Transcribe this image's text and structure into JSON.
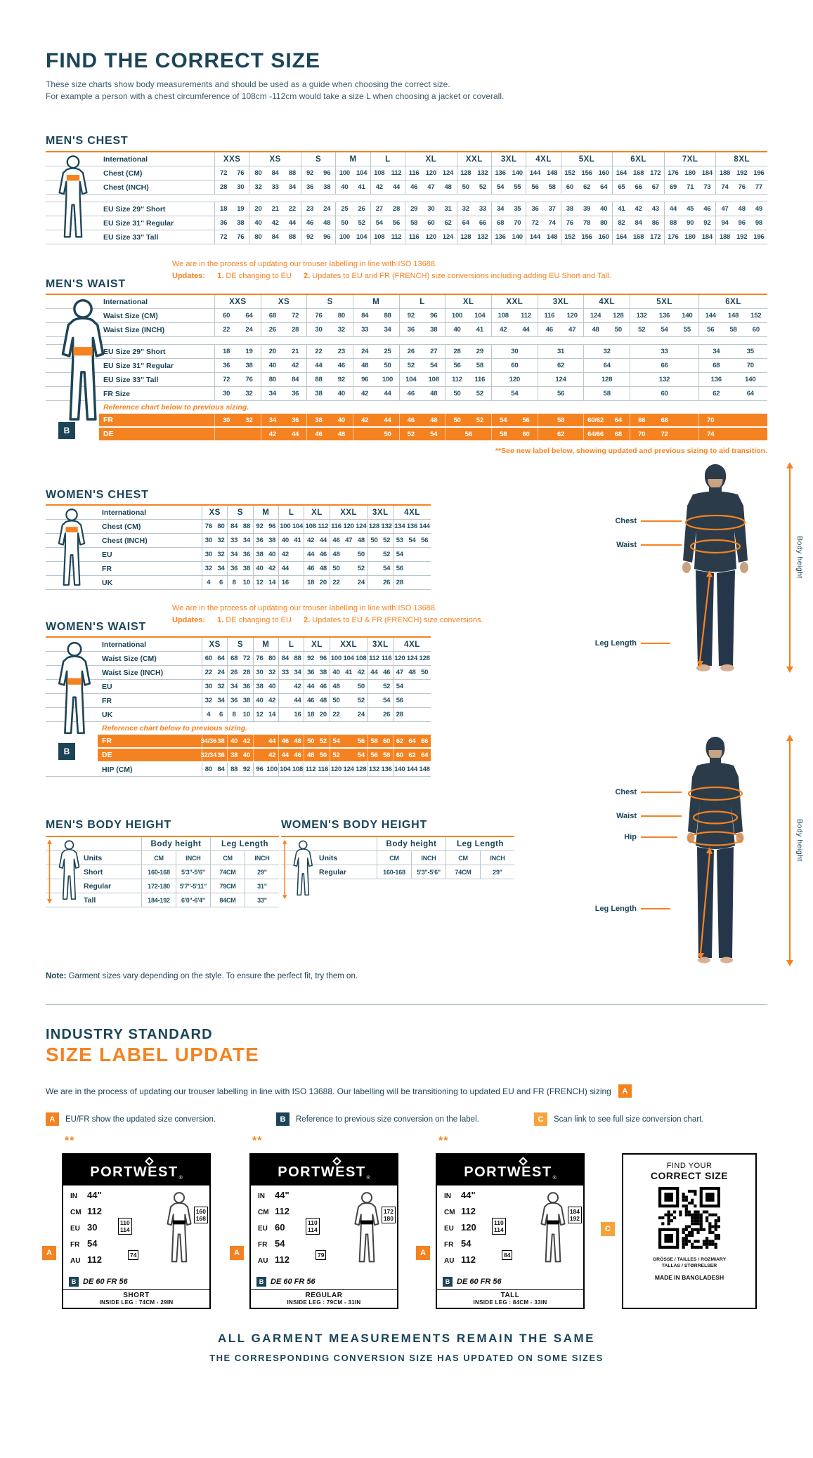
{
  "page": {
    "title": "FIND THE CORRECT SIZE",
    "subtitle1": "These size charts show body measurements and should be used as a guide when choosing the correct size.",
    "subtitle2": "For example a person with a chest circumference of 108cm -112cm would take a size L when choosing a jacket or coverall."
  },
  "colors": {
    "navy": "#1b4457",
    "orange": "#f58220",
    "amber": "#f5a43c"
  },
  "badges": {
    "a": "A",
    "b": "B",
    "c": "C"
  },
  "figure_labels": {
    "chest": "Chest",
    "waist": "Waist",
    "hip": "Hip",
    "leg": "Leg Length",
    "height": "Body height"
  },
  "tables": {
    "mens_chest": {
      "title": "MEN'S CHEST",
      "corner": "International",
      "groups": [
        {
          "label": "XXS",
          "cols": 2
        },
        {
          "label": "XS",
          "cols": 3
        },
        {
          "label": "S",
          "cols": 2
        },
        {
          "label": "M",
          "cols": 2
        },
        {
          "label": "L",
          "cols": 2
        },
        {
          "label": "XL",
          "cols": 3
        },
        {
          "label": "XXL",
          "cols": 2
        },
        {
          "label": "3XL",
          "cols": 2
        },
        {
          "label": "4XL",
          "cols": 2
        },
        {
          "label": "5XL",
          "cols": 3
        },
        {
          "label": "6XL",
          "cols": 3
        },
        {
          "label": "7XL",
          "cols": 3
        },
        {
          "label": "8XL",
          "cols": 3
        }
      ],
      "rows": [
        {
          "label": "Chest (CM)",
          "cells": [
            "72 76",
            "80 84 88",
            "92 96",
            "100 104",
            "108 112",
            "116 120 124",
            "128 132",
            "136 140",
            "144 148",
            "152 156 160",
            "164 168 172",
            "176 180 184",
            "188 192 196"
          ]
        },
        {
          "label": "Chest (INCH)",
          "cells": [
            "28 30",
            "32 33 34",
            "36 38",
            "40 41",
            "42 44",
            "46 47 48",
            "50 52",
            "54 55",
            "56 58",
            "60 62 64",
            "65 66 67",
            "69 71 73",
            "74 76 77"
          ]
        },
        {
          "gap": true
        },
        {
          "label": "EU Size 29\" Short",
          "cells": [
            "18 19",
            "20 21 22",
            "23 24",
            "25 26",
            "27 28",
            "29 30 31",
            "32 33",
            "34 35",
            "36 37",
            "38 39 40",
            "41 42 43",
            "44 45 46",
            "47 48 49"
          ]
        },
        {
          "label": "EU Size 31\" Regular",
          "cells": [
            "36 38",
            "40 42 44",
            "46 48",
            "50 52",
            "54 56",
            "58 60 62",
            "64 66",
            "68 70",
            "72 74",
            "76 78 80",
            "82 84 86",
            "88 90 92",
            "94 96 98"
          ]
        },
        {
          "label": "EU Size 33\" Tall",
          "cells": [
            "72 76",
            "80 84 88",
            "92 96",
            "100 104",
            "108 112",
            "116 120 124",
            "128 132",
            "136 140",
            "144 148",
            "152 156 160",
            "164 168 172",
            "176 180 184",
            "188 192 196"
          ]
        }
      ]
    },
    "mens_waist": {
      "title": "MEN'S WAIST",
      "corner": "International",
      "note_line1": "We are in the process of updating our trouser labelling in line with ISO 13688.",
      "updates_label": "Updates:",
      "n1": "1.",
      "t1": " DE changing to EU",
      "n2": "2.",
      "t2": " Updates to EU and FR (FRENCH) size conversions including adding EU Short and Tall.",
      "footnote": "**See new label below, showing updated and previous sizing to aid transition.",
      "groups": [
        {
          "label": "XXS",
          "cols": 2
        },
        {
          "label": "XS",
          "cols": 2
        },
        {
          "label": "S",
          "cols": 2
        },
        {
          "label": "M",
          "cols": 2
        },
        {
          "label": "L",
          "cols": 2
        },
        {
          "label": "XL",
          "cols": 2
        },
        {
          "label": "XXL",
          "cols": 2
        },
        {
          "label": "3XL",
          "cols": 2
        },
        {
          "label": "4XL",
          "cols": 2
        },
        {
          "label": "5XL",
          "cols": 3
        },
        {
          "label": "6XL",
          "cols": 3
        }
      ],
      "rows": [
        {
          "label": "Waist Size (CM)",
          "cells": [
            "60 64",
            "68 72",
            "76 80",
            "84 88",
            "92 96",
            "100 104",
            "108 112",
            "116 120",
            "124 128",
            "132 136 140",
            "144 148 152"
          ]
        },
        {
          "label": "Waist Size (INCH)",
          "cells": [
            "22 24",
            "26 28",
            "30 32",
            "33 34",
            "36 38",
            "40 41",
            "42 44",
            "46 47",
            "48 50",
            "52 54 55",
            "56 58 60"
          ]
        },
        {
          "gap": true
        },
        {
          "label": "EU Size 29\" Short",
          "cells": [
            "18 19",
            "20 21",
            "22 23",
            "24 25",
            "26 27",
            "28 29",
            "30",
            "31",
            "32",
            "33",
            "34 35"
          ]
        },
        {
          "label": "EU Size 31\" Regular",
          "cells": [
            "36 38",
            "40 42",
            "44 46",
            "48 50",
            "52 54",
            "56 58",
            "60",
            "62",
            "64",
            "66",
            "68 70"
          ]
        },
        {
          "label": "EU Size 33\" Tall",
          "cells": [
            "72 76",
            "80 84",
            "88 92",
            "96 100",
            "104 108",
            "112 116",
            "120",
            "124",
            "128",
            "132",
            "136 140"
          ]
        },
        {
          "label": "FR Size",
          "cells": [
            "30 32",
            "34 36",
            "38 40",
            "42 44",
            "46 48",
            "50 52",
            "54",
            "56",
            "58",
            "60",
            "62 64"
          ]
        },
        {
          "note": "Reference chart below to previous sizing."
        },
        {
          "label": "FR",
          "orange": true,
          "cells": [
            "30 32",
            "34 36",
            "38 40",
            "42 44",
            "46 48",
            "50 52",
            "54 56",
            "58",
            "60/62 64",
            "66 68 _",
            "70 _ _"
          ]
        },
        {
          "label": "DE",
          "orange": true,
          "cells": [
            "_ _",
            "42 44",
            "46 48",
            "_ 50",
            "52 54",
            "56",
            "58 60",
            "62",
            "64/66 68",
            "70 72 _",
            "74 _ _"
          ]
        }
      ]
    },
    "womens_chest": {
      "title": "WOMEN'S CHEST",
      "corner": "International",
      "groups": [
        {
          "label": "XS",
          "cols": 2
        },
        {
          "label": "S",
          "cols": 2
        },
        {
          "label": "M",
          "cols": 2
        },
        {
          "label": "L",
          "cols": 2
        },
        {
          "label": "XL",
          "cols": 2
        },
        {
          "label": "XXL",
          "cols": 3
        },
        {
          "label": "3XL",
          "cols": 2
        },
        {
          "label": "4XL",
          "cols": 3
        }
      ],
      "rows": [
        {
          "label": "Chest (CM)",
          "cells": [
            "76 80",
            "84 88",
            "92 96",
            "100 104",
            "108 112",
            "116 120 124",
            "128 132",
            "134 136 144"
          ]
        },
        {
          "label": "Chest (INCH)",
          "cells": [
            "30 32",
            "33 34",
            "36 38",
            "40 41",
            "42 44",
            "46 47 48",
            "50 52",
            "53 54 56"
          ]
        },
        {
          "label": "EU",
          "cells": [
            "30 32",
            "34 36",
            "38 40",
            "42 _",
            "44 46",
            "48 _ 50",
            "_ 52",
            "54 _ _"
          ]
        },
        {
          "label": "FR",
          "cells": [
            "32 34",
            "36 38",
            "40 42",
            "44 _",
            "46 48",
            "50 _ 52",
            "_ 54",
            "56 _ _"
          ]
        },
        {
          "label": "UK",
          "cells": [
            "4 6",
            "8 10",
            "12 14",
            "16 _",
            "18 20",
            "22 _ 24",
            "_ 26",
            "28 _ _"
          ]
        }
      ]
    },
    "womens_waist": {
      "title": "WOMEN'S WAIST",
      "corner": "International",
      "note_line1": "We are in the process of updating our trouser labelling in line with ISO 13688.",
      "updates_label": "Updates:",
      "n1": "1.",
      "t1": " DE changing to EU",
      "n2": "2.",
      "t2": " Updates to EU & FR (FRENCH) size conversions.",
      "groups": [
        {
          "label": "XS",
          "cols": 2
        },
        {
          "label": "S",
          "cols": 2
        },
        {
          "label": "M",
          "cols": 2
        },
        {
          "label": "L",
          "cols": 2
        },
        {
          "label": "XL",
          "cols": 2
        },
        {
          "label": "XXL",
          "cols": 3
        },
        {
          "label": "3XL",
          "cols": 2
        },
        {
          "label": "4XL",
          "cols": 3
        }
      ],
      "rows": [
        {
          "label": "Waist Size (CM)",
          "cells": [
            "60 64",
            "68 72",
            "76 80",
            "84 88",
            "92 96",
            "100 104 108",
            "112 116",
            "120 124 128"
          ]
        },
        {
          "label": "Waist Size (INCH)",
          "cells": [
            "22 24",
            "26 28",
            "30 32",
            "33 34",
            "36 38",
            "40 41 42",
            "44 46",
            "47 48 50"
          ]
        },
        {
          "label": "EU",
          "cells": [
            "30 32",
            "34 36",
            "38 40",
            "_ 42",
            "44 46",
            "48 _ 50",
            "_ 52",
            "54 _ _"
          ]
        },
        {
          "label": "FR",
          "cells": [
            "32 34",
            "36 38",
            "40 42",
            "_ 44",
            "46 48",
            "50 _ 52",
            "_ 54",
            "56 _ _"
          ]
        },
        {
          "label": "UK",
          "cells": [
            "4 6",
            "8 10",
            "12 14",
            "_ 16",
            "18 20",
            "22 _ 24",
            "_ 26",
            "28 _ _"
          ]
        },
        {
          "note": "Reference chart below to previous sizing."
        },
        {
          "label": "FR",
          "orange": true,
          "cells": [
            "34/36 38",
            "40 42",
            "_ 44",
            "46 48",
            "50 52",
            "54 _ 56",
            "58 60",
            "62 64 66"
          ]
        },
        {
          "label": "DE",
          "orange": true,
          "cells": [
            "32/34 36",
            "38 40",
            "_ 42",
            "44 46",
            "48 50",
            "52 _ 54",
            "56 58",
            "60 62 64"
          ]
        },
        {
          "label": "HIP (CM)",
          "cells": [
            "80 84",
            "88 92",
            "96 100",
            "104 108",
            "112 116",
            "120 124 128",
            "132 136",
            "140 144 148"
          ]
        }
      ]
    },
    "mens_body_height": {
      "title": "MEN'S BODY HEIGHT",
      "corner": "",
      "groups": [
        {
          "label": "Body height",
          "cols": 2
        },
        {
          "label": "Leg Length",
          "cols": 2
        }
      ],
      "rows": [
        {
          "label": "Units",
          "cells": [
            "CM INCH",
            "CM INCH"
          ]
        },
        {
          "label": "Short",
          "cells": [
            "160-168 5'3\"-5'6\"",
            "74CM 29\""
          ]
        },
        {
          "label": "Regular",
          "cells": [
            "172-180 5'7\"-5'11\"",
            "79CM 31\""
          ]
        },
        {
          "label": "Tall",
          "cells": [
            "184-192 6'0\"-6'4\"",
            "84CM 33\""
          ]
        }
      ]
    },
    "womens_body_height": {
      "title": "WOMEN'S BODY HEIGHT",
      "corner": "",
      "groups": [
        {
          "label": "Body height",
          "cols": 2
        },
        {
          "label": "Leg Length",
          "cols": 2
        }
      ],
      "rows": [
        {
          "label": "Units",
          "cells": [
            "CM INCH",
            "CM INCH"
          ]
        },
        {
          "label": "Regular",
          "cells": [
            "160-168 5'3\"-5'6\"",
            "74CM 29\""
          ]
        }
      ]
    }
  },
  "note": {
    "bold": "Note:",
    "rest": " Garment sizes vary depending on the style. To ensure the perfect fit, try them on."
  },
  "label_update": {
    "heading1": "INDUSTRY STANDARD",
    "heading2": "SIZE LABEL UPDATE",
    "para": "We are in the process of updating our trouser labelling in line with ISO 13688. Our labelling will be transitioning to updated EU and FR (FRENCH) sizing",
    "para_badge": "A",
    "legend": [
      {
        "badge": "A",
        "text": "EU/FR show the updated size conversion."
      },
      {
        "badge": "B",
        "text": "Reference to previous size conversion on the label."
      },
      {
        "badge": "C",
        "text": "Scan link to see full size conversion chart."
      }
    ],
    "labels": [
      {
        "stars": "**",
        "brand": "PORTWEST",
        "reg": "®",
        "rows": [
          [
            "IN",
            "44\""
          ],
          [
            "CM",
            "112"
          ],
          [
            "EU",
            "30"
          ],
          [
            "FR",
            "54"
          ],
          [
            "AU",
            "112"
          ]
        ],
        "waist_box": "110 114",
        "height_box": "160 168",
        "leg_box": "74",
        "prev": "DE 60 FR 56",
        "name": "SHORT",
        "inside_leg": "INSIDE LEG : 74CM - 29IN"
      },
      {
        "stars": "**",
        "brand": "PORTWEST",
        "reg": "®",
        "rows": [
          [
            "IN",
            "44\""
          ],
          [
            "CM",
            "112"
          ],
          [
            "EU",
            "60"
          ],
          [
            "FR",
            "54"
          ],
          [
            "AU",
            "112"
          ]
        ],
        "waist_box": "110 114",
        "height_box": "172 180",
        "leg_box": "79",
        "prev": "DE 60 FR 56",
        "name": "REGULAR",
        "inside_leg": "INSIDE LEG : 79CM - 31IN"
      },
      {
        "stars": "**",
        "brand": "PORTWEST",
        "reg": "®",
        "rows": [
          [
            "IN",
            "44\""
          ],
          [
            "CM",
            "112"
          ],
          [
            "EU",
            "120"
          ],
          [
            "FR",
            "54"
          ],
          [
            "AU",
            "112"
          ]
        ],
        "waist_box": "110 114",
        "height_box": "184 192",
        "leg_box": "84",
        "prev": "DE 60 FR 56",
        "name": "TALL",
        "inside_leg": "INSIDE LEG : 84CM - 33IN"
      }
    ],
    "qr": {
      "find": "FIND YOUR",
      "correct": "CORRECT SIZE",
      "langs1": "GRÖSSE / TAILLES / ROZMIARY",
      "langs2": "TALLAS / STØRRELSER",
      "made": "MADE IN BANGLADESH",
      "badge": "C"
    }
  },
  "footer": {
    "line1": "ALL GARMENT MEASUREMENTS REMAIN THE SAME",
    "line2": "THE CORRESPONDING CONVERSION SIZE HAS UPDATED ON SOME SIZES"
  }
}
